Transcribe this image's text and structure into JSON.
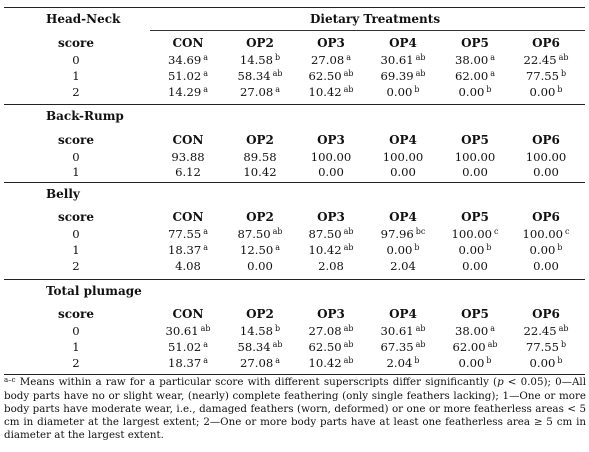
{
  "header": {
    "group_label": "Head-Neck",
    "treatments_label": "Dietary Treatments"
  },
  "columns": [
    "score",
    "CON",
    "OP2",
    "OP3",
    "OP4",
    "OP5",
    "OP6"
  ],
  "sections": [
    {
      "title": "Head-Neck",
      "rows": [
        {
          "score": "0",
          "cells": [
            {
              "v": "34.69",
              "s": "a"
            },
            {
              "v": "14.58",
              "s": "b"
            },
            {
              "v": "27.08",
              "s": "a"
            },
            {
              "v": "30.61",
              "s": "ab"
            },
            {
              "v": "38.00",
              "s": "a"
            },
            {
              "v": "22.45",
              "s": "ab"
            }
          ]
        },
        {
          "score": "1",
          "cells": [
            {
              "v": "51.02",
              "s": "a"
            },
            {
              "v": "58.34",
              "s": "ab"
            },
            {
              "v": "62.50",
              "s": "ab"
            },
            {
              "v": "69.39",
              "s": "ab"
            },
            {
              "v": "62.00",
              "s": "a"
            },
            {
              "v": "77.55",
              "s": "b"
            }
          ]
        },
        {
          "score": "2",
          "cells": [
            {
              "v": "14.29",
              "s": "a"
            },
            {
              "v": "27.08",
              "s": "a"
            },
            {
              "v": "10.42",
              "s": "ab"
            },
            {
              "v": "0.00",
              "s": "b"
            },
            {
              "v": "0.00",
              "s": "b"
            },
            {
              "v": "0.00",
              "s": "b"
            }
          ]
        }
      ]
    },
    {
      "title": "Back-Rump",
      "rows": [
        {
          "score": "0",
          "cells": [
            {
              "v": "93.88",
              "s": ""
            },
            {
              "v": "89.58",
              "s": ""
            },
            {
              "v": "100.00",
              "s": ""
            },
            {
              "v": "100.00",
              "s": ""
            },
            {
              "v": "100.00",
              "s": ""
            },
            {
              "v": "100.00",
              "s": ""
            }
          ]
        },
        {
          "score": "1",
          "cells": [
            {
              "v": "6.12",
              "s": ""
            },
            {
              "v": "10.42",
              "s": ""
            },
            {
              "v": "0.00",
              "s": ""
            },
            {
              "v": "0.00",
              "s": ""
            },
            {
              "v": "0.00",
              "s": ""
            },
            {
              "v": "0.00",
              "s": ""
            }
          ]
        }
      ]
    },
    {
      "title": "Belly",
      "rows": [
        {
          "score": "0",
          "cells": [
            {
              "v": "77.55",
              "s": "a"
            },
            {
              "v": "87.50",
              "s": "ab"
            },
            {
              "v": "87.50",
              "s": "ab"
            },
            {
              "v": "97.96",
              "s": "bc"
            },
            {
              "v": "100.00",
              "s": "c"
            },
            {
              "v": "100.00",
              "s": "c"
            }
          ]
        },
        {
          "score": "1",
          "cells": [
            {
              "v": "18.37",
              "s": "a"
            },
            {
              "v": "12.50",
              "s": "a"
            },
            {
              "v": "10.42",
              "s": "ab"
            },
            {
              "v": "0.00",
              "s": "b"
            },
            {
              "v": "0.00",
              "s": "b"
            },
            {
              "v": "0.00",
              "s": "b"
            }
          ]
        },
        {
          "score": "2",
          "cells": [
            {
              "v": "4.08",
              "s": ""
            },
            {
              "v": "0.00",
              "s": ""
            },
            {
              "v": "2.08",
              "s": ""
            },
            {
              "v": "2.04",
              "s": ""
            },
            {
              "v": "0.00",
              "s": ""
            },
            {
              "v": "0.00",
              "s": ""
            }
          ]
        }
      ]
    },
    {
      "title": "Total plumage",
      "rows": [
        {
          "score": "0",
          "cells": [
            {
              "v": "30.61",
              "s": "ab"
            },
            {
              "v": "14.58",
              "s": "b"
            },
            {
              "v": "27.08",
              "s": "ab"
            },
            {
              "v": "30.61",
              "s": "ab"
            },
            {
              "v": "38.00",
              "s": "a"
            },
            {
              "v": "22.45",
              "s": "ab"
            }
          ]
        },
        {
          "score": "1",
          "cells": [
            {
              "v": "51.02",
              "s": "a"
            },
            {
              "v": "58.34",
              "s": "ab"
            },
            {
              "v": "62.50",
              "s": "ab"
            },
            {
              "v": "67.35",
              "s": "ab"
            },
            {
              "v": "62.00",
              "s": "ab"
            },
            {
              "v": "77.55",
              "s": "b"
            }
          ]
        },
        {
          "score": "2",
          "cells": [
            {
              "v": "18.37",
              "s": "a"
            },
            {
              "v": "27.08",
              "s": "a"
            },
            {
              "v": "10.42",
              "s": "ab"
            },
            {
              "v": "2.04",
              "s": "b"
            },
            {
              "v": "0.00",
              "s": "b"
            },
            {
              "v": "0.00",
              "s": "b"
            }
          ]
        }
      ]
    }
  ],
  "footnote": {
    "sup": "a–c",
    "text_before_p": " Means within a raw for a particular score with different superscripts differ significantly (",
    "p_symbol": "p",
    "text_after_p": " < 0.05); 0—All body parts have no or slight wear, (nearly) complete feathering (only single feathers lacking); 1—One or more body parts have moderate wear, i.e., damaged feathers (worn, deformed) or one or more featherless areas < 5 cm in diameter at the largest extent; 2—One or more body parts have at least one featherless area ≥ 5 cm in diameter at the largest extent."
  }
}
